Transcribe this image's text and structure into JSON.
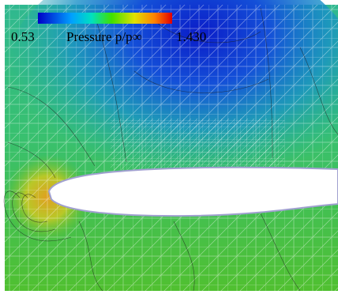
{
  "colorbar": {
    "min_label": "0.53",
    "title": "Pressure p/p∞",
    "max_label": "1.430"
  }
}
